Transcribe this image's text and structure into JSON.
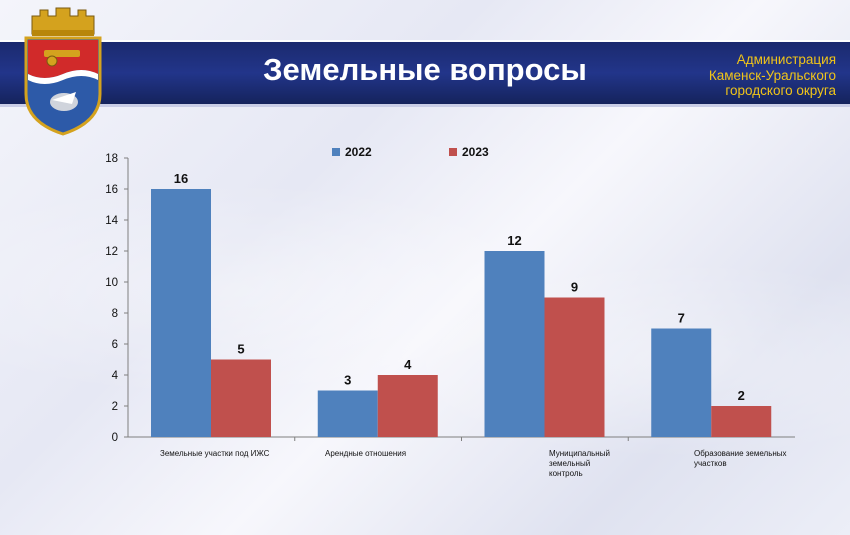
{
  "header": {
    "title": "Земельные вопросы",
    "admin_lines": [
      "Администрация",
      "Каменск-Уральского",
      "городского округа"
    ]
  },
  "colors": {
    "s2022": "#4f81bd",
    "s2023": "#c0504d",
    "banner": "#1b2a6e",
    "admin_text": "#f0c419"
  },
  "chart_data": {
    "type": "bar",
    "categories": [
      "Земельные участки под ИЖС",
      "Арендные отношения",
      "Муниципальный земельный контроль",
      "Образование земельных участков"
    ],
    "category_lines": [
      [
        "Земельные участки под ИЖС"
      ],
      [
        "Арендные отношения"
      ],
      [
        "Муниципальный",
        "земельный",
        "контроль"
      ],
      [
        "Образование земельных",
        "участков"
      ]
    ],
    "series": [
      {
        "name": "2022",
        "values": [
          16,
          3,
          12,
          7
        ]
      },
      {
        "name": "2023",
        "values": [
          5,
          4,
          9,
          2
        ]
      }
    ],
    "ylim": [
      0,
      18
    ],
    "yticks": [
      0,
      2,
      4,
      6,
      8,
      10,
      12,
      14,
      16,
      18
    ],
    "legend": "top-center",
    "grid": false
  }
}
